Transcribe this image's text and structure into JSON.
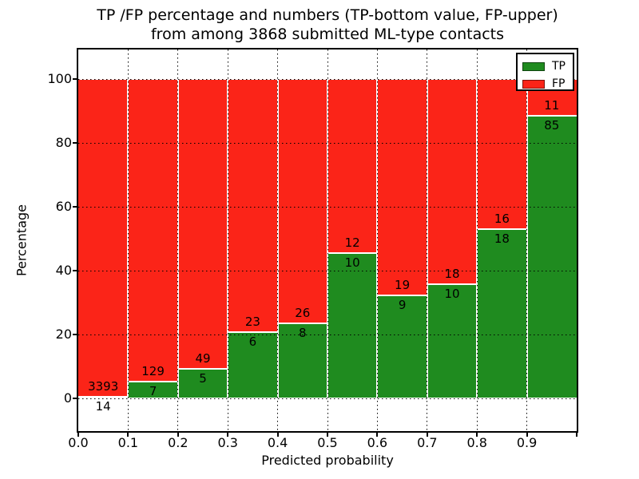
{
  "title": {
    "line1": "TP /FP percentage and numbers (TP-bottom value, FP-upper)",
    "line2": "from among 3868 submitted ML-type contacts"
  },
  "axes": {
    "xlabel": "Predicted probability",
    "ylabel": "Percentage",
    "x_tick_labels": [
      "0.0",
      "0.1",
      "0.2",
      "0.3",
      "0.4",
      "0.5",
      "0.6",
      "0.7",
      "0.8",
      "0.9"
    ],
    "y_tick_labels": [
      "0",
      "20",
      "40",
      "60",
      "80",
      "100"
    ],
    "y_tick_values": [
      0,
      20,
      40,
      60,
      80,
      100
    ]
  },
  "legend": {
    "entries": [
      {
        "label": "TP",
        "color": "#1f8b1f"
      },
      {
        "label": "FP",
        "color": "#fb2418"
      }
    ]
  },
  "colors": {
    "tp": "#1f8b1f",
    "fp": "#fb2418",
    "background": "#ffffff",
    "frame": "#000000"
  },
  "chart_data": {
    "type": "bar",
    "stacked": true,
    "normalized_to_percent": true,
    "title": "TP /FP percentage and numbers (TP-bottom value, FP-upper) from among 3868 submitted ML-type contacts",
    "xlabel": "Predicted probability",
    "ylabel": "Percentage",
    "bin_edges": [
      0.0,
      0.1,
      0.2,
      0.3,
      0.4,
      0.5,
      0.6,
      0.7,
      0.8,
      0.9,
      1.0
    ],
    "categories": [
      "0.0-0.1",
      "0.1-0.2",
      "0.2-0.3",
      "0.3-0.4",
      "0.4-0.5",
      "0.5-0.6",
      "0.6-0.7",
      "0.7-0.8",
      "0.8-0.9",
      "0.9-1.0"
    ],
    "series": [
      {
        "name": "TP",
        "color": "#1f8b1f",
        "counts": [
          14,
          7,
          5,
          6,
          8,
          10,
          9,
          10,
          18,
          85
        ]
      },
      {
        "name": "FP",
        "color": "#fb2418",
        "counts": [
          3393,
          129,
          49,
          23,
          26,
          12,
          19,
          18,
          16,
          11
        ]
      }
    ],
    "tp_percent_by_bin": [
      0.41,
      5.15,
      9.26,
      20.69,
      23.53,
      45.45,
      32.14,
      35.71,
      52.94,
      88.54
    ],
    "total_contacts": 3868,
    "ylim": [
      -10.25,
      109.25
    ],
    "xlim": [
      0.0,
      1.0
    ],
    "grid": true,
    "legend_position": "upper right",
    "annotation_note": "FP count printed just above the TP/FP boundary of each bar, TP count just below it"
  }
}
